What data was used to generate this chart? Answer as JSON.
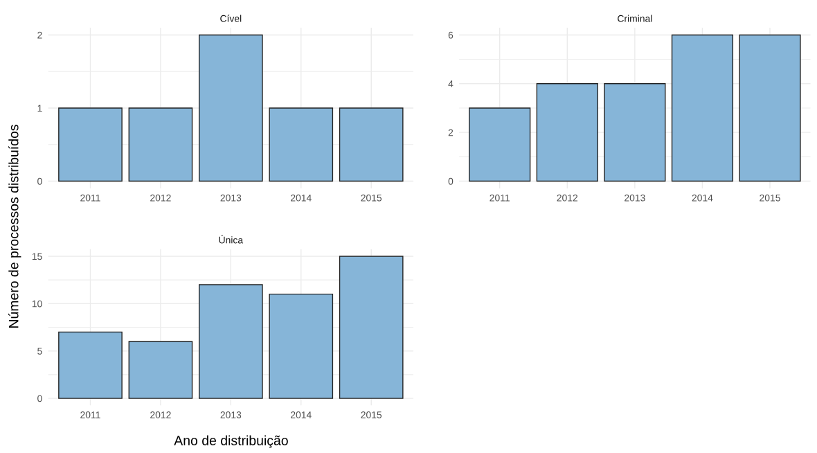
{
  "chart_data": [
    {
      "type": "bar",
      "title": "Cível",
      "ylabel": "Número de processos distribuídos",
      "categories": [
        "2011",
        "2012",
        "2013",
        "2014",
        "2015"
      ],
      "values": [
        1,
        1,
        2,
        1,
        1
      ],
      "color": "#86b5d8",
      "ylim": [
        -0.1,
        2.1
      ],
      "yticks": [
        0,
        {
          "value": 0.5,
          "label": null
        },
        1,
        {
          "value": 1.5,
          "label": null
        },
        2
      ],
      "grid": true
    },
    {
      "type": "bar",
      "title": "Criminal",
      "categories": [
        "2011",
        "2012",
        "2013",
        "2014",
        "2015"
      ],
      "values": [
        3,
        4,
        4,
        6,
        6
      ],
      "color": "#86b5d8",
      "ylim": [
        -0.3,
        6.3
      ],
      "yticks": [
        0,
        {
          "value": 1,
          "label": null
        },
        2,
        {
          "value": 3,
          "label": null
        },
        4,
        {
          "value": 5,
          "label": null
        },
        6
      ],
      "grid": true
    },
    {
      "type": "bar",
      "title": "Única",
      "xlabel": "Ano de distribuição",
      "categories": [
        "2011",
        "2012",
        "2013",
        "2014",
        "2015"
      ],
      "values": [
        7,
        6,
        12,
        11,
        15
      ],
      "color": "#86b5d8",
      "ylim": [
        -0.75,
        15.75
      ],
      "yticks": [
        0,
        {
          "value": 2.5,
          "label": null
        },
        5,
        {
          "value": 7.5,
          "label": null
        },
        10,
        {
          "value": 12.5,
          "label": null
        },
        15
      ],
      "grid": true
    }
  ]
}
